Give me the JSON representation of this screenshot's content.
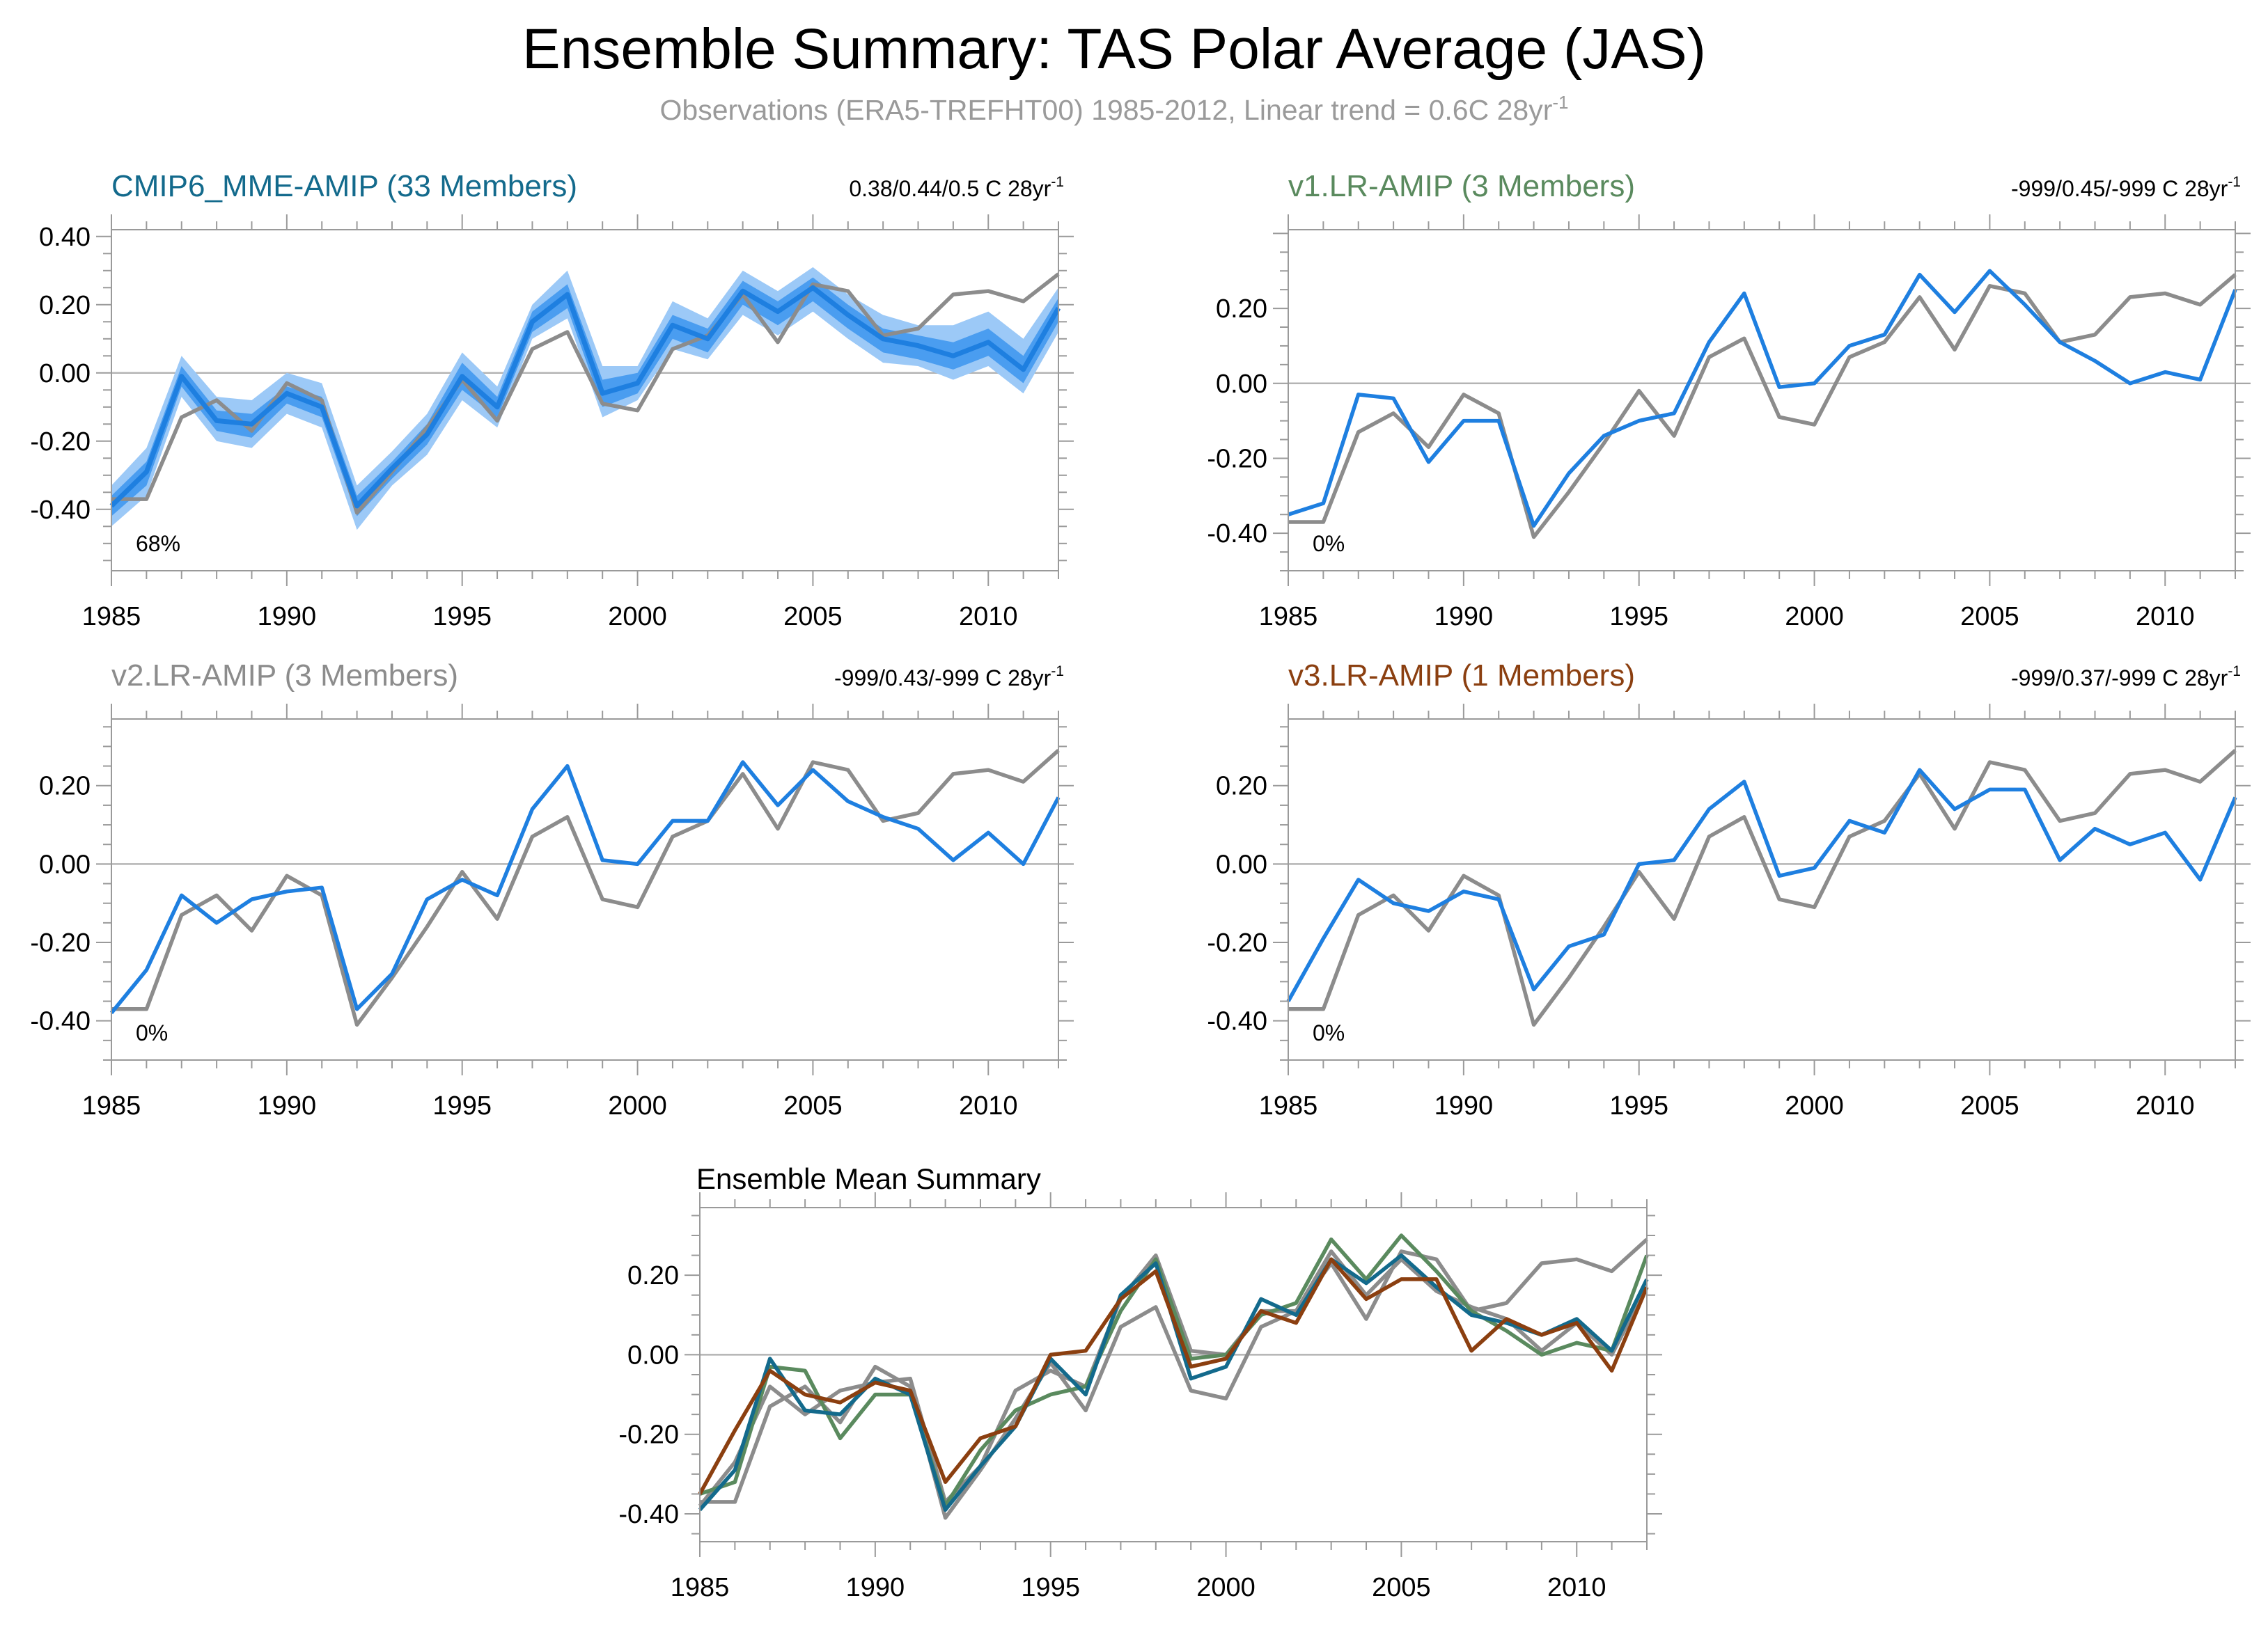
{
  "page": {
    "title": "Ensemble Summary: TAS Polar Average (JAS)",
    "subtitle_main": "Observations (ERA5-TREFHT00) 1985-2012, Linear trend = 0.6C 28yr",
    "subtitle_sup": "-1"
  },
  "colors": {
    "obs": "#8c8c8c",
    "model": "#1e7fe0",
    "band_outer": "#9cc9f7",
    "band_inner": "#4a9df0",
    "cmip6": "#136a8c",
    "v1": "#5a8a5e",
    "v2": "#8c8c8c",
    "v3": "#8b3f10",
    "zero_line": "#b4b4b4",
    "frame": "#9a9a9a"
  },
  "chart_data": [
    {
      "id": "cmip6",
      "type": "line",
      "title": "CMIP6_MME-AMIP (33 Members)",
      "title_color": "#136a8c",
      "trend_main": "0.38/0.44/0.5 C 28yr",
      "trend_sup": "-1",
      "percent": "68%",
      "xlim": [
        1985,
        2012
      ],
      "ylim": [
        -0.58,
        0.42
      ],
      "xticks": [
        1985,
        1990,
        1995,
        2000,
        2005,
        2010
      ],
      "yticks": [
        -0.4,
        -0.2,
        0.0,
        0.2,
        0.4
      ],
      "ytick_labels": [
        "-0.40",
        "-0.20",
        "0.00",
        "0.20",
        "0.40"
      ],
      "x": [
        1985,
        1986,
        1987,
        1988,
        1989,
        1990,
        1991,
        1992,
        1993,
        1994,
        1995,
        1996,
        1997,
        1998,
        1999,
        2000,
        2001,
        2002,
        2003,
        2004,
        2005,
        2006,
        2007,
        2008,
        2009,
        2010,
        2011,
        2012
      ],
      "bands": [
        {
          "name": "outer",
          "lower": [
            -0.45,
            -0.36,
            -0.07,
            -0.2,
            -0.22,
            -0.12,
            -0.16,
            -0.46,
            -0.33,
            -0.24,
            -0.08,
            -0.16,
            0.1,
            0.16,
            -0.13,
            -0.08,
            0.07,
            0.04,
            0.17,
            0.11,
            0.18,
            0.1,
            0.03,
            0.02,
            -0.02,
            0.02,
            -0.06,
            0.12
          ],
          "upper": [
            -0.33,
            -0.22,
            0.05,
            -0.07,
            -0.08,
            0.0,
            -0.03,
            -0.33,
            -0.23,
            -0.12,
            0.06,
            -0.04,
            0.2,
            0.3,
            0.02,
            0.02,
            0.21,
            0.16,
            0.3,
            0.24,
            0.31,
            0.23,
            0.17,
            0.14,
            0.14,
            0.18,
            0.1,
            0.25
          ]
        },
        {
          "name": "inner",
          "lower": [
            -0.42,
            -0.33,
            -0.04,
            -0.17,
            -0.19,
            -0.09,
            -0.13,
            -0.42,
            -0.31,
            -0.21,
            -0.05,
            -0.13,
            0.12,
            0.19,
            -0.1,
            -0.06,
            0.1,
            0.06,
            0.2,
            0.14,
            0.21,
            0.13,
            0.06,
            0.04,
            0.01,
            0.05,
            -0.03,
            0.15
          ],
          "upper": [
            -0.36,
            -0.26,
            0.02,
            -0.11,
            -0.12,
            -0.04,
            -0.07,
            -0.36,
            -0.26,
            -0.15,
            0.03,
            -0.07,
            0.18,
            0.26,
            -0.02,
            0.0,
            0.17,
            0.13,
            0.27,
            0.21,
            0.28,
            0.2,
            0.13,
            0.11,
            0.09,
            0.13,
            0.05,
            0.22
          ]
        }
      ],
      "series": [
        {
          "role": "obs",
          "values": [
            -0.37,
            -0.37,
            -0.13,
            -0.08,
            -0.17,
            -0.03,
            -0.08,
            -0.41,
            -0.29,
            -0.16,
            -0.02,
            -0.14,
            0.07,
            0.12,
            -0.09,
            -0.11,
            0.07,
            0.11,
            0.23,
            0.09,
            0.26,
            0.24,
            0.11,
            0.13,
            0.23,
            0.24,
            0.21,
            0.29
          ]
        },
        {
          "role": "model",
          "values": [
            -0.39,
            -0.29,
            -0.01,
            -0.14,
            -0.15,
            -0.06,
            -0.1,
            -0.39,
            -0.28,
            -0.18,
            -0.01,
            -0.1,
            0.15,
            0.23,
            -0.06,
            -0.03,
            0.14,
            0.1,
            0.24,
            0.18,
            0.25,
            0.17,
            0.1,
            0.08,
            0.05,
            0.09,
            0.01,
            0.19
          ]
        }
      ]
    },
    {
      "id": "v1",
      "type": "line",
      "title": "v1.LR-AMIP (3 Members)",
      "title_color": "#5a8a5e",
      "trend_main": "-999/0.45/-999 C 28yr",
      "trend_sup": "-1",
      "percent": "0%",
      "xlim": [
        1985,
        2012
      ],
      "ylim": [
        -0.5,
        0.41
      ],
      "xticks": [
        1985,
        1990,
        1995,
        2000,
        2005,
        2010
      ],
      "yticks": [
        -0.4,
        -0.2,
        0.0,
        0.2
      ],
      "ytick_labels": [
        "-0.40",
        "-0.20",
        "0.00",
        "0.20"
      ],
      "x": [
        1985,
        1986,
        1987,
        1988,
        1989,
        1990,
        1991,
        1992,
        1993,
        1994,
        1995,
        1996,
        1997,
        1998,
        1999,
        2000,
        2001,
        2002,
        2003,
        2004,
        2005,
        2006,
        2007,
        2008,
        2009,
        2010,
        2011,
        2012
      ],
      "series": [
        {
          "role": "obs",
          "values": [
            -0.37,
            -0.37,
            -0.13,
            -0.08,
            -0.17,
            -0.03,
            -0.08,
            -0.41,
            -0.29,
            -0.16,
            -0.02,
            -0.14,
            0.07,
            0.12,
            -0.09,
            -0.11,
            0.07,
            0.11,
            0.23,
            0.09,
            0.26,
            0.24,
            0.11,
            0.13,
            0.23,
            0.24,
            0.21,
            0.29
          ]
        },
        {
          "role": "model",
          "values": [
            -0.35,
            -0.32,
            -0.03,
            -0.04,
            -0.21,
            -0.1,
            -0.1,
            -0.38,
            -0.24,
            -0.14,
            -0.1,
            -0.08,
            0.11,
            0.24,
            -0.01,
            0.0,
            0.1,
            0.13,
            0.29,
            0.19,
            0.3,
            0.21,
            0.11,
            0.06,
            0.0,
            0.03,
            0.01,
            0.25
          ]
        }
      ]
    },
    {
      "id": "v2",
      "type": "line",
      "title": "v2.LR-AMIP (3 Members)",
      "title_color": "#8c8c8c",
      "trend_main": "-999/0.43/-999 C 28yr",
      "trend_sup": "-1",
      "percent": "0%",
      "xlim": [
        1985,
        2012
      ],
      "ylim": [
        -0.5,
        0.37
      ],
      "xticks": [
        1985,
        1990,
        1995,
        2000,
        2005,
        2010
      ],
      "yticks": [
        -0.4,
        -0.2,
        0.0,
        0.2
      ],
      "ytick_labels": [
        "-0.40",
        "-0.20",
        "0.00",
        "0.20"
      ],
      "x": [
        1985,
        1986,
        1987,
        1988,
        1989,
        1990,
        1991,
        1992,
        1993,
        1994,
        1995,
        1996,
        1997,
        1998,
        1999,
        2000,
        2001,
        2002,
        2003,
        2004,
        2005,
        2006,
        2007,
        2008,
        2009,
        2010,
        2011,
        2012
      ],
      "series": [
        {
          "role": "obs",
          "values": [
            -0.37,
            -0.37,
            -0.13,
            -0.08,
            -0.17,
            -0.03,
            -0.08,
            -0.41,
            -0.29,
            -0.16,
            -0.02,
            -0.14,
            0.07,
            0.12,
            -0.09,
            -0.11,
            0.07,
            0.11,
            0.23,
            0.09,
            0.26,
            0.24,
            0.11,
            0.13,
            0.23,
            0.24,
            0.21,
            0.29
          ]
        },
        {
          "role": "model",
          "values": [
            -0.38,
            -0.27,
            -0.08,
            -0.15,
            -0.09,
            -0.07,
            -0.06,
            -0.37,
            -0.28,
            -0.09,
            -0.04,
            -0.08,
            0.14,
            0.25,
            0.01,
            0.0,
            0.11,
            0.11,
            0.26,
            0.15,
            0.24,
            0.16,
            0.12,
            0.09,
            0.01,
            0.08,
            0.0,
            0.17
          ]
        }
      ]
    },
    {
      "id": "v3",
      "type": "line",
      "title": "v3.LR-AMIP (1 Members)",
      "title_color": "#8b3f10",
      "trend_main": "-999/0.37/-999 C 28yr",
      "trend_sup": "-1",
      "percent": "0%",
      "xlim": [
        1985,
        2012
      ],
      "ylim": [
        -0.5,
        0.37
      ],
      "xticks": [
        1985,
        1990,
        1995,
        2000,
        2005,
        2010
      ],
      "yticks": [
        -0.4,
        -0.2,
        0.0,
        0.2
      ],
      "ytick_labels": [
        "-0.40",
        "-0.20",
        "0.00",
        "0.20"
      ],
      "x": [
        1985,
        1986,
        1987,
        1988,
        1989,
        1990,
        1991,
        1992,
        1993,
        1994,
        1995,
        1996,
        1997,
        1998,
        1999,
        2000,
        2001,
        2002,
        2003,
        2004,
        2005,
        2006,
        2007,
        2008,
        2009,
        2010,
        2011,
        2012
      ],
      "series": [
        {
          "role": "obs",
          "values": [
            -0.37,
            -0.37,
            -0.13,
            -0.08,
            -0.17,
            -0.03,
            -0.08,
            -0.41,
            -0.29,
            -0.16,
            -0.02,
            -0.14,
            0.07,
            0.12,
            -0.09,
            -0.11,
            0.07,
            0.11,
            0.23,
            0.09,
            0.26,
            0.24,
            0.11,
            0.13,
            0.23,
            0.24,
            0.21,
            0.29
          ]
        },
        {
          "role": "model",
          "values": [
            -0.35,
            -0.19,
            -0.04,
            -0.1,
            -0.12,
            -0.07,
            -0.09,
            -0.32,
            -0.21,
            -0.18,
            0.0,
            0.01,
            0.14,
            0.21,
            -0.03,
            -0.01,
            0.11,
            0.08,
            0.24,
            0.14,
            0.19,
            0.19,
            0.01,
            0.09,
            0.05,
            0.08,
            -0.04,
            0.17
          ]
        }
      ]
    },
    {
      "id": "summary",
      "type": "line",
      "title": "Ensemble Mean Summary",
      "title_color": "#000000",
      "xlim": [
        1985,
        2012
      ],
      "ylim": [
        -0.47,
        0.37
      ],
      "xticks": [
        1985,
        1990,
        1995,
        2000,
        2005,
        2010
      ],
      "yticks": [
        -0.4,
        -0.2,
        0.0,
        0.2
      ],
      "ytick_labels": [
        "-0.40",
        "-0.20",
        "0.00",
        "0.20"
      ],
      "x": [
        1985,
        1986,
        1987,
        1988,
        1989,
        1990,
        1991,
        1992,
        1993,
        1994,
        1995,
        1996,
        1997,
        1998,
        1999,
        2000,
        2001,
        2002,
        2003,
        2004,
        2005,
        2006,
        2007,
        2008,
        2009,
        2010,
        2011,
        2012
      ],
      "series": [
        {
          "role": "obs",
          "color": "#8c8c8c",
          "values": [
            -0.37,
            -0.37,
            -0.13,
            -0.08,
            -0.17,
            -0.03,
            -0.08,
            -0.41,
            -0.29,
            -0.16,
            -0.02,
            -0.14,
            0.07,
            0.12,
            -0.09,
            -0.11,
            0.07,
            0.11,
            0.23,
            0.09,
            0.26,
            0.24,
            0.11,
            0.13,
            0.23,
            0.24,
            0.21,
            0.29
          ]
        },
        {
          "role": "v2",
          "color": "#8c8c8c",
          "values": [
            -0.38,
            -0.27,
            -0.08,
            -0.15,
            -0.09,
            -0.07,
            -0.06,
            -0.37,
            -0.28,
            -0.09,
            -0.04,
            -0.08,
            0.14,
            0.25,
            0.01,
            0.0,
            0.11,
            0.11,
            0.26,
            0.15,
            0.24,
            0.16,
            0.12,
            0.09,
            0.01,
            0.08,
            0.0,
            0.17
          ]
        },
        {
          "role": "v1",
          "color": "#5a8a5e",
          "values": [
            -0.35,
            -0.32,
            -0.03,
            -0.04,
            -0.21,
            -0.1,
            -0.1,
            -0.38,
            -0.24,
            -0.14,
            -0.1,
            -0.08,
            0.11,
            0.24,
            -0.01,
            0.0,
            0.1,
            0.13,
            0.29,
            0.19,
            0.3,
            0.21,
            0.11,
            0.06,
            0.0,
            0.03,
            0.01,
            0.25
          ]
        },
        {
          "role": "cmip6",
          "color": "#136a8c",
          "values": [
            -0.39,
            -0.29,
            -0.01,
            -0.14,
            -0.15,
            -0.06,
            -0.1,
            -0.39,
            -0.28,
            -0.18,
            -0.01,
            -0.1,
            0.15,
            0.23,
            -0.06,
            -0.03,
            0.14,
            0.1,
            0.24,
            0.18,
            0.25,
            0.17,
            0.1,
            0.08,
            0.05,
            0.09,
            0.01,
            0.19
          ]
        },
        {
          "role": "v3",
          "color": "#8b3f10",
          "values": [
            -0.35,
            -0.19,
            -0.04,
            -0.1,
            -0.12,
            -0.07,
            -0.09,
            -0.32,
            -0.21,
            -0.18,
            0.0,
            0.01,
            0.14,
            0.21,
            -0.03,
            -0.01,
            0.11,
            0.08,
            0.24,
            0.14,
            0.19,
            0.19,
            0.01,
            0.09,
            0.05,
            0.08,
            -0.04,
            0.17
          ]
        }
      ]
    }
  ]
}
